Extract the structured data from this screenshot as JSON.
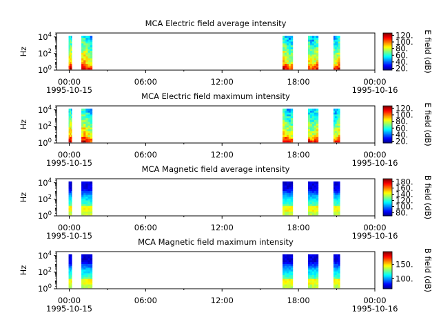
{
  "chart_data": [
    {
      "type": "heatmap",
      "title": "MCA  Electric field average intensity",
      "ylabel": "Hz",
      "colorbar_label": "E field (dB)",
      "yscale": "log",
      "ylim": [
        1,
        30000
      ],
      "y_ticks": [
        {
          "exp": "0"
        },
        {
          "exp": "2"
        },
        {
          "exp": "4"
        }
      ],
      "x_ticks": [
        {
          "time": "00:00",
          "date": "1995-10-15"
        },
        {
          "time": "06:00",
          "date": ""
        },
        {
          "time": "12:00",
          "date": ""
        },
        {
          "time": "18:00",
          "date": ""
        },
        {
          "time": "00:00",
          "date": "1995-10-16"
        }
      ],
      "colorbar_ticks": [
        "20.",
        "40.",
        "60.",
        "80.",
        "100.",
        "120."
      ],
      "clim": [
        15,
        127
      ],
      "data_intervals_hours": [
        [
          -0.05,
          0.2
        ],
        [
          0.95,
          1.8
        ],
        [
          16.75,
          17.55
        ],
        [
          18.75,
          19.55
        ],
        [
          20.75,
          21.25
        ]
      ],
      "pattern": "electric"
    },
    {
      "type": "heatmap",
      "title": "MCA  Electric field maximum intensity",
      "ylabel": "Hz",
      "colorbar_label": "E field (dB)",
      "yscale": "log",
      "ylim": [
        1,
        30000
      ],
      "y_ticks": [
        {
          "exp": "0"
        },
        {
          "exp": "2"
        },
        {
          "exp": "4"
        }
      ],
      "x_ticks": [
        {
          "time": "00:00",
          "date": "1995-10-15"
        },
        {
          "time": "06:00",
          "date": ""
        },
        {
          "time": "12:00",
          "date": ""
        },
        {
          "time": "18:00",
          "date": ""
        },
        {
          "time": "00:00",
          "date": "1995-10-16"
        }
      ],
      "colorbar_ticks": [
        "20.",
        "40.",
        "60.",
        "80.",
        "100.",
        "120."
      ],
      "clim": [
        15,
        127
      ],
      "data_intervals_hours": [
        [
          -0.05,
          0.2
        ],
        [
          0.95,
          1.8
        ],
        [
          16.75,
          17.55
        ],
        [
          18.75,
          19.55
        ],
        [
          20.75,
          21.25
        ]
      ],
      "pattern": "electric"
    },
    {
      "type": "heatmap",
      "title": "MCA  Magnetic field average intensity",
      "ylabel": "Hz",
      "colorbar_label": "B field (dB)",
      "yscale": "log",
      "ylim": [
        1,
        30000
      ],
      "y_ticks": [
        {
          "exp": "0"
        },
        {
          "exp": "2"
        },
        {
          "exp": "4"
        }
      ],
      "x_ticks": [
        {
          "time": "00:00",
          "date": "1995-10-15"
        },
        {
          "time": "06:00",
          "date": ""
        },
        {
          "time": "12:00",
          "date": ""
        },
        {
          "time": "18:00",
          "date": ""
        },
        {
          "time": "00:00",
          "date": "1995-10-16"
        }
      ],
      "colorbar_ticks": [
        "80.",
        "100.",
        "120.",
        "140.",
        "160.",
        "180."
      ],
      "clim": [
        70,
        190
      ],
      "data_intervals_hours": [
        [
          -0.05,
          0.2
        ],
        [
          0.95,
          1.8
        ],
        [
          16.75,
          17.55
        ],
        [
          18.75,
          19.55
        ],
        [
          20.75,
          21.25
        ]
      ],
      "pattern": "magnetic"
    },
    {
      "type": "heatmap",
      "title": "MCA  Magnetic field maximum intensity",
      "ylabel": "Hz",
      "colorbar_label": "B field (dB)",
      "yscale": "log",
      "ylim": [
        1,
        30000
      ],
      "y_ticks": [
        {
          "exp": "0"
        },
        {
          "exp": "2"
        },
        {
          "exp": "4"
        }
      ],
      "x_ticks": [
        {
          "time": "00:00",
          "date": "1995-10-15"
        },
        {
          "time": "06:00",
          "date": ""
        },
        {
          "time": "12:00",
          "date": ""
        },
        {
          "time": "18:00",
          "date": ""
        },
        {
          "time": "00:00",
          "date": "1995-10-16"
        }
      ],
      "colorbar_ticks": [
        "100.",
        "150."
      ],
      "clim": [
        65,
        195
      ],
      "data_intervals_hours": [
        [
          -0.05,
          0.2
        ],
        [
          0.95,
          1.8
        ],
        [
          16.75,
          17.55
        ],
        [
          18.75,
          19.55
        ],
        [
          20.75,
          21.25
        ]
      ],
      "pattern": "magnetic"
    }
  ]
}
